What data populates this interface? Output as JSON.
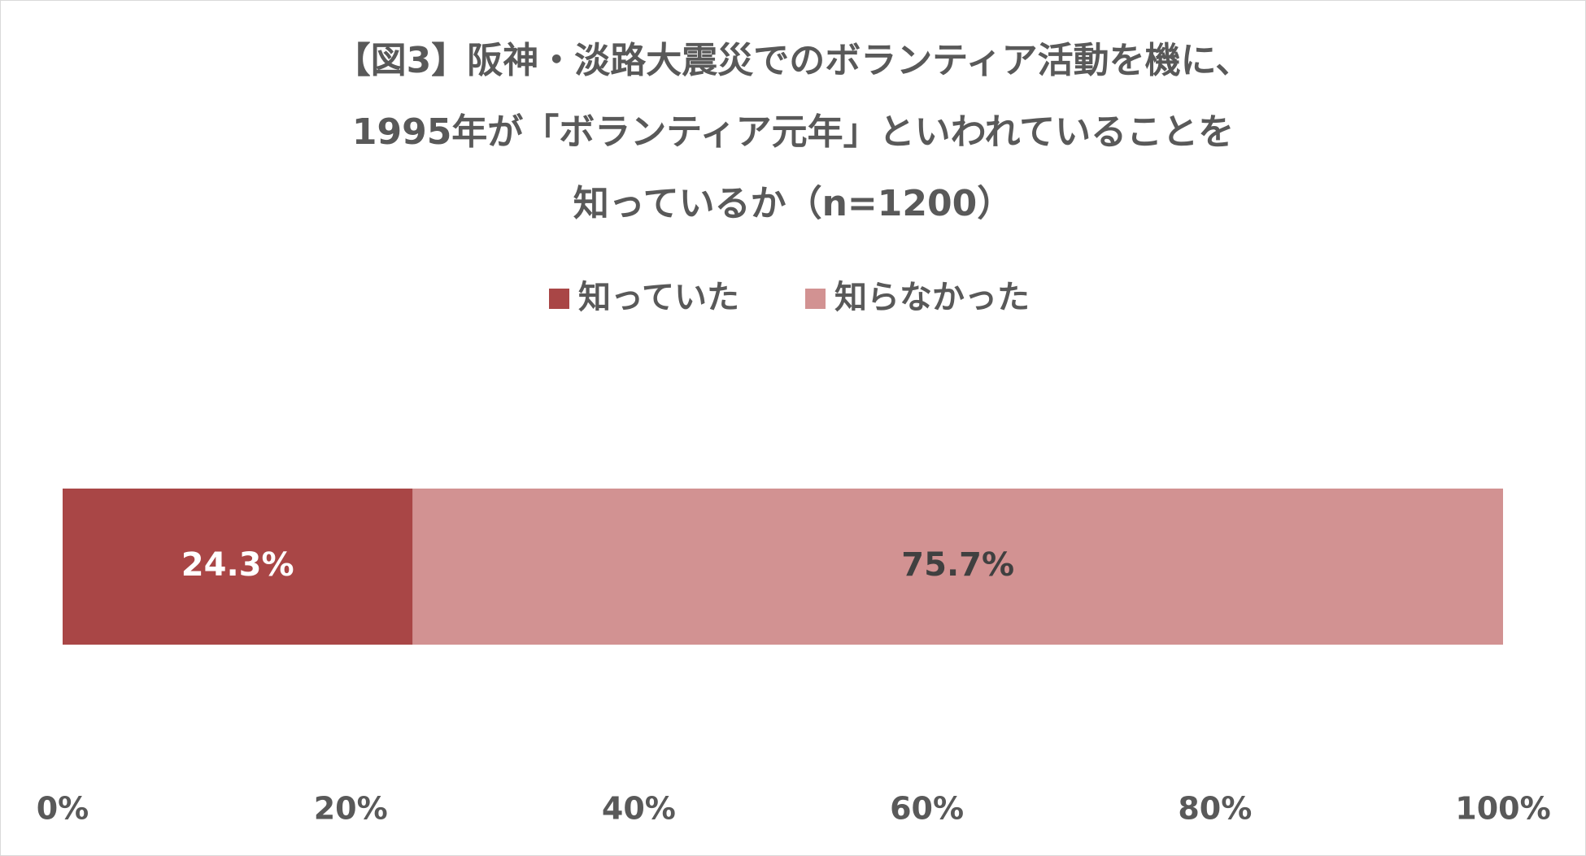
{
  "chart_data": {
    "type": "stacked-bar-horizontal",
    "title": [
      "【図3】阪神・淡路大震災でのボランティア活動を機に、",
      "1995年が「ボランティア元年」といわれていることを",
      "知っているか（n=1200）"
    ],
    "series": [
      {
        "name": "知っていた",
        "color": "#a94646",
        "label_color": "#ffffff",
        "values": [
          24.3
        ],
        "value_labels": [
          "24.3%"
        ]
      },
      {
        "name": "知らなかった",
        "color": "#d29292",
        "label_color": "#404040",
        "values": [
          75.7
        ],
        "value_labels": [
          "75.7%"
        ]
      }
    ],
    "xlim": [
      0,
      100
    ],
    "xticks": [
      {
        "value": 0,
        "label": "0%"
      },
      {
        "value": 20,
        "label": "20%"
      },
      {
        "value": 40,
        "label": "40%"
      },
      {
        "value": 60,
        "label": "60%"
      },
      {
        "value": 80,
        "label": "80%"
      },
      {
        "value": 100,
        "label": "100%"
      }
    ],
    "grid": false,
    "legend": "top"
  }
}
